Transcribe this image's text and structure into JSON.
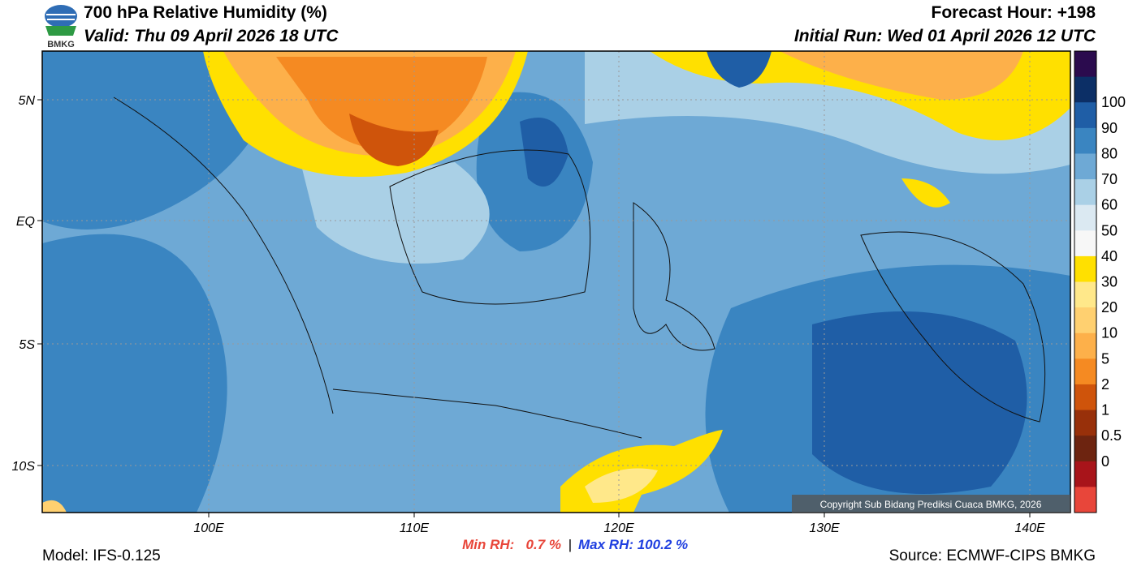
{
  "header": {
    "logo_text": "BMKG",
    "title": "700 hPa Relative Humidity (%)",
    "valid": "Valid: Thu 09 April 2026 18 UTC",
    "forecast_hour": "Forecast Hour: +198",
    "initial_run": "Initial Run: Wed 01 April 2026 12 UTC"
  },
  "map": {
    "lat_labels": [
      "5N",
      "EQ",
      "5S",
      "10S"
    ],
    "lon_labels": [
      "100E",
      "110E",
      "120E",
      "130E",
      "140E"
    ],
    "copyright": "Copyright Sub Bidang Prediksi Cuaca BMKG, 2026"
  },
  "colorbar": {
    "labels": [
      "100",
      "90",
      "80",
      "70",
      "60",
      "50",
      "40",
      "30",
      "20",
      "10",
      "5",
      "2",
      "1",
      "0.5",
      "0"
    ],
    "colors": [
      "#2b0b4e",
      "#0c2f66",
      "#1f5ea6",
      "#3a85c1",
      "#6ea9d5",
      "#aad0e6",
      "#dbe9f2",
      "#f7f7f7",
      "#ffe000",
      "#ffe88a",
      "#ffd070",
      "#fdb04a",
      "#f58a22",
      "#cf540b",
      "#98300a",
      "#6d2410",
      "#a8141a",
      "#e8463a"
    ]
  },
  "footer": {
    "model": "Model: IFS-0.125",
    "min_rh": "Min RH:   0.7 %",
    "separator": "|",
    "max_rh": "Max RH: 100.2 %",
    "source": "Source: ECMWF-CIPS BMKG"
  }
}
